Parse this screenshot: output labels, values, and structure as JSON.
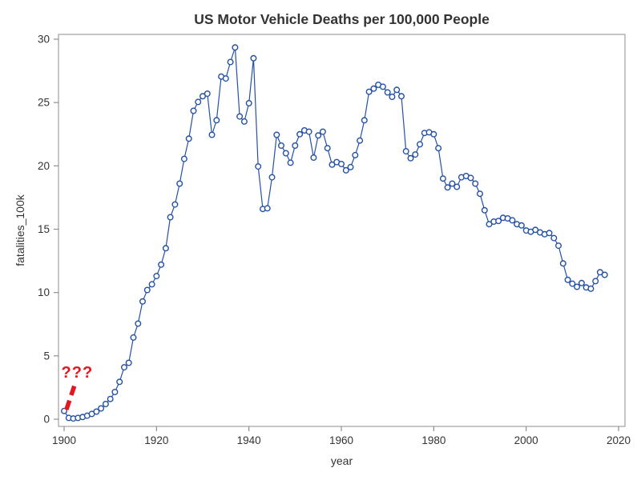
{
  "chart": {
    "title": "US Motor Vehicle Deaths per 100,000 People",
    "xlabel": "year",
    "ylabel": "fatalities_100k",
    "annotation": {
      "text": "???"
    },
    "colors": {
      "line": "#2551a5",
      "frame": "#a8a8a8",
      "tick": "#8e8e8e",
      "text": "#333333",
      "annotation": "#e5161f",
      "background": "#ffffff"
    }
  },
  "chart_data": {
    "type": "line",
    "title": "US Motor Vehicle Deaths per 100,000 People",
    "xlabel": "year",
    "ylabel": "fatalities_100k",
    "xlim": [
      1898.8,
      2021.3
    ],
    "ylim": [
      -0.57,
      30.4
    ],
    "x_ticks": [
      1900,
      1920,
      1940,
      1960,
      1980,
      2000,
      2020
    ],
    "y_ticks": [
      0,
      5,
      10,
      15,
      20,
      25,
      30
    ],
    "grid": false,
    "legend": false,
    "marker": "open-circle",
    "series": [
      {
        "name": "fatalities_100k",
        "x": [
          1900,
          1901,
          1902,
          1903,
          1904,
          1905,
          1906,
          1907,
          1908,
          1909,
          1910,
          1911,
          1912,
          1913,
          1914,
          1915,
          1916,
          1917,
          1918,
          1919,
          1920,
          1921,
          1922,
          1923,
          1924,
          1925,
          1926,
          1927,
          1928,
          1929,
          1930,
          1931,
          1932,
          1933,
          1934,
          1935,
          1936,
          1937,
          1938,
          1939,
          1940,
          1941,
          1942,
          1943,
          1944,
          1945,
          1946,
          1947,
          1948,
          1949,
          1950,
          1951,
          1952,
          1953,
          1954,
          1955,
          1956,
          1957,
          1958,
          1959,
          1960,
          1961,
          1962,
          1963,
          1964,
          1965,
          1966,
          1967,
          1968,
          1969,
          1970,
          1971,
          1972,
          1973,
          1974,
          1975,
          1976,
          1977,
          1978,
          1979,
          1980,
          1981,
          1982,
          1983,
          1984,
          1985,
          1986,
          1987,
          1988,
          1989,
          1990,
          1991,
          1992,
          1993,
          1994,
          1995,
          1996,
          1997,
          1998,
          1999,
          2000,
          2001,
          2002,
          2003,
          2004,
          2005,
          2006,
          2007,
          2008,
          2009,
          2010,
          2011,
          2012,
          2013,
          2014,
          2015,
          2016,
          2017
        ],
        "y": [
          0.65,
          0.1,
          0.06,
          0.1,
          0.17,
          0.28,
          0.42,
          0.6,
          0.85,
          1.2,
          1.6,
          2.15,
          2.95,
          4.1,
          4.45,
          6.45,
          7.55,
          9.3,
          10.2,
          10.65,
          11.3,
          12.2,
          13.5,
          15.95,
          16.95,
          18.6,
          20.55,
          22.15,
          24.35,
          25.05,
          25.5,
          25.7,
          22.45,
          23.6,
          27.05,
          26.9,
          28.2,
          29.35,
          23.9,
          23.5,
          24.95,
          28.5,
          19.95,
          16.6,
          16.65,
          19.1,
          22.45,
          21.6,
          21.0,
          20.25,
          21.6,
          22.5,
          22.8,
          22.7,
          20.65,
          22.4,
          22.7,
          21.4,
          20.1,
          20.3,
          20.15,
          19.65,
          19.9,
          20.85,
          22.0,
          23.6,
          25.85,
          26.1,
          26.4,
          26.25,
          25.8,
          25.45,
          26.0,
          25.5,
          21.15,
          20.6,
          20.9,
          21.7,
          22.6,
          22.65,
          22.5,
          21.4,
          19.0,
          18.3,
          18.6,
          18.35,
          19.1,
          19.2,
          19.05,
          18.6,
          17.8,
          16.5,
          15.4,
          15.6,
          15.65,
          15.9,
          15.85,
          15.7,
          15.4,
          15.3,
          14.9,
          14.8,
          14.95,
          14.75,
          14.6,
          14.7,
          14.3,
          13.7,
          12.3,
          11.0,
          10.7,
          10.45,
          10.75,
          10.4,
          10.3,
          10.9,
          11.6,
          11.4
        ]
      }
    ],
    "annotation": {
      "text": "???",
      "text_anchor_data": [
        1899.4,
        3.28
      ],
      "dash_from_data": [
        1900.5,
        0.76
      ],
      "dash_to_data": [
        1902.3,
        2.72
      ]
    }
  }
}
